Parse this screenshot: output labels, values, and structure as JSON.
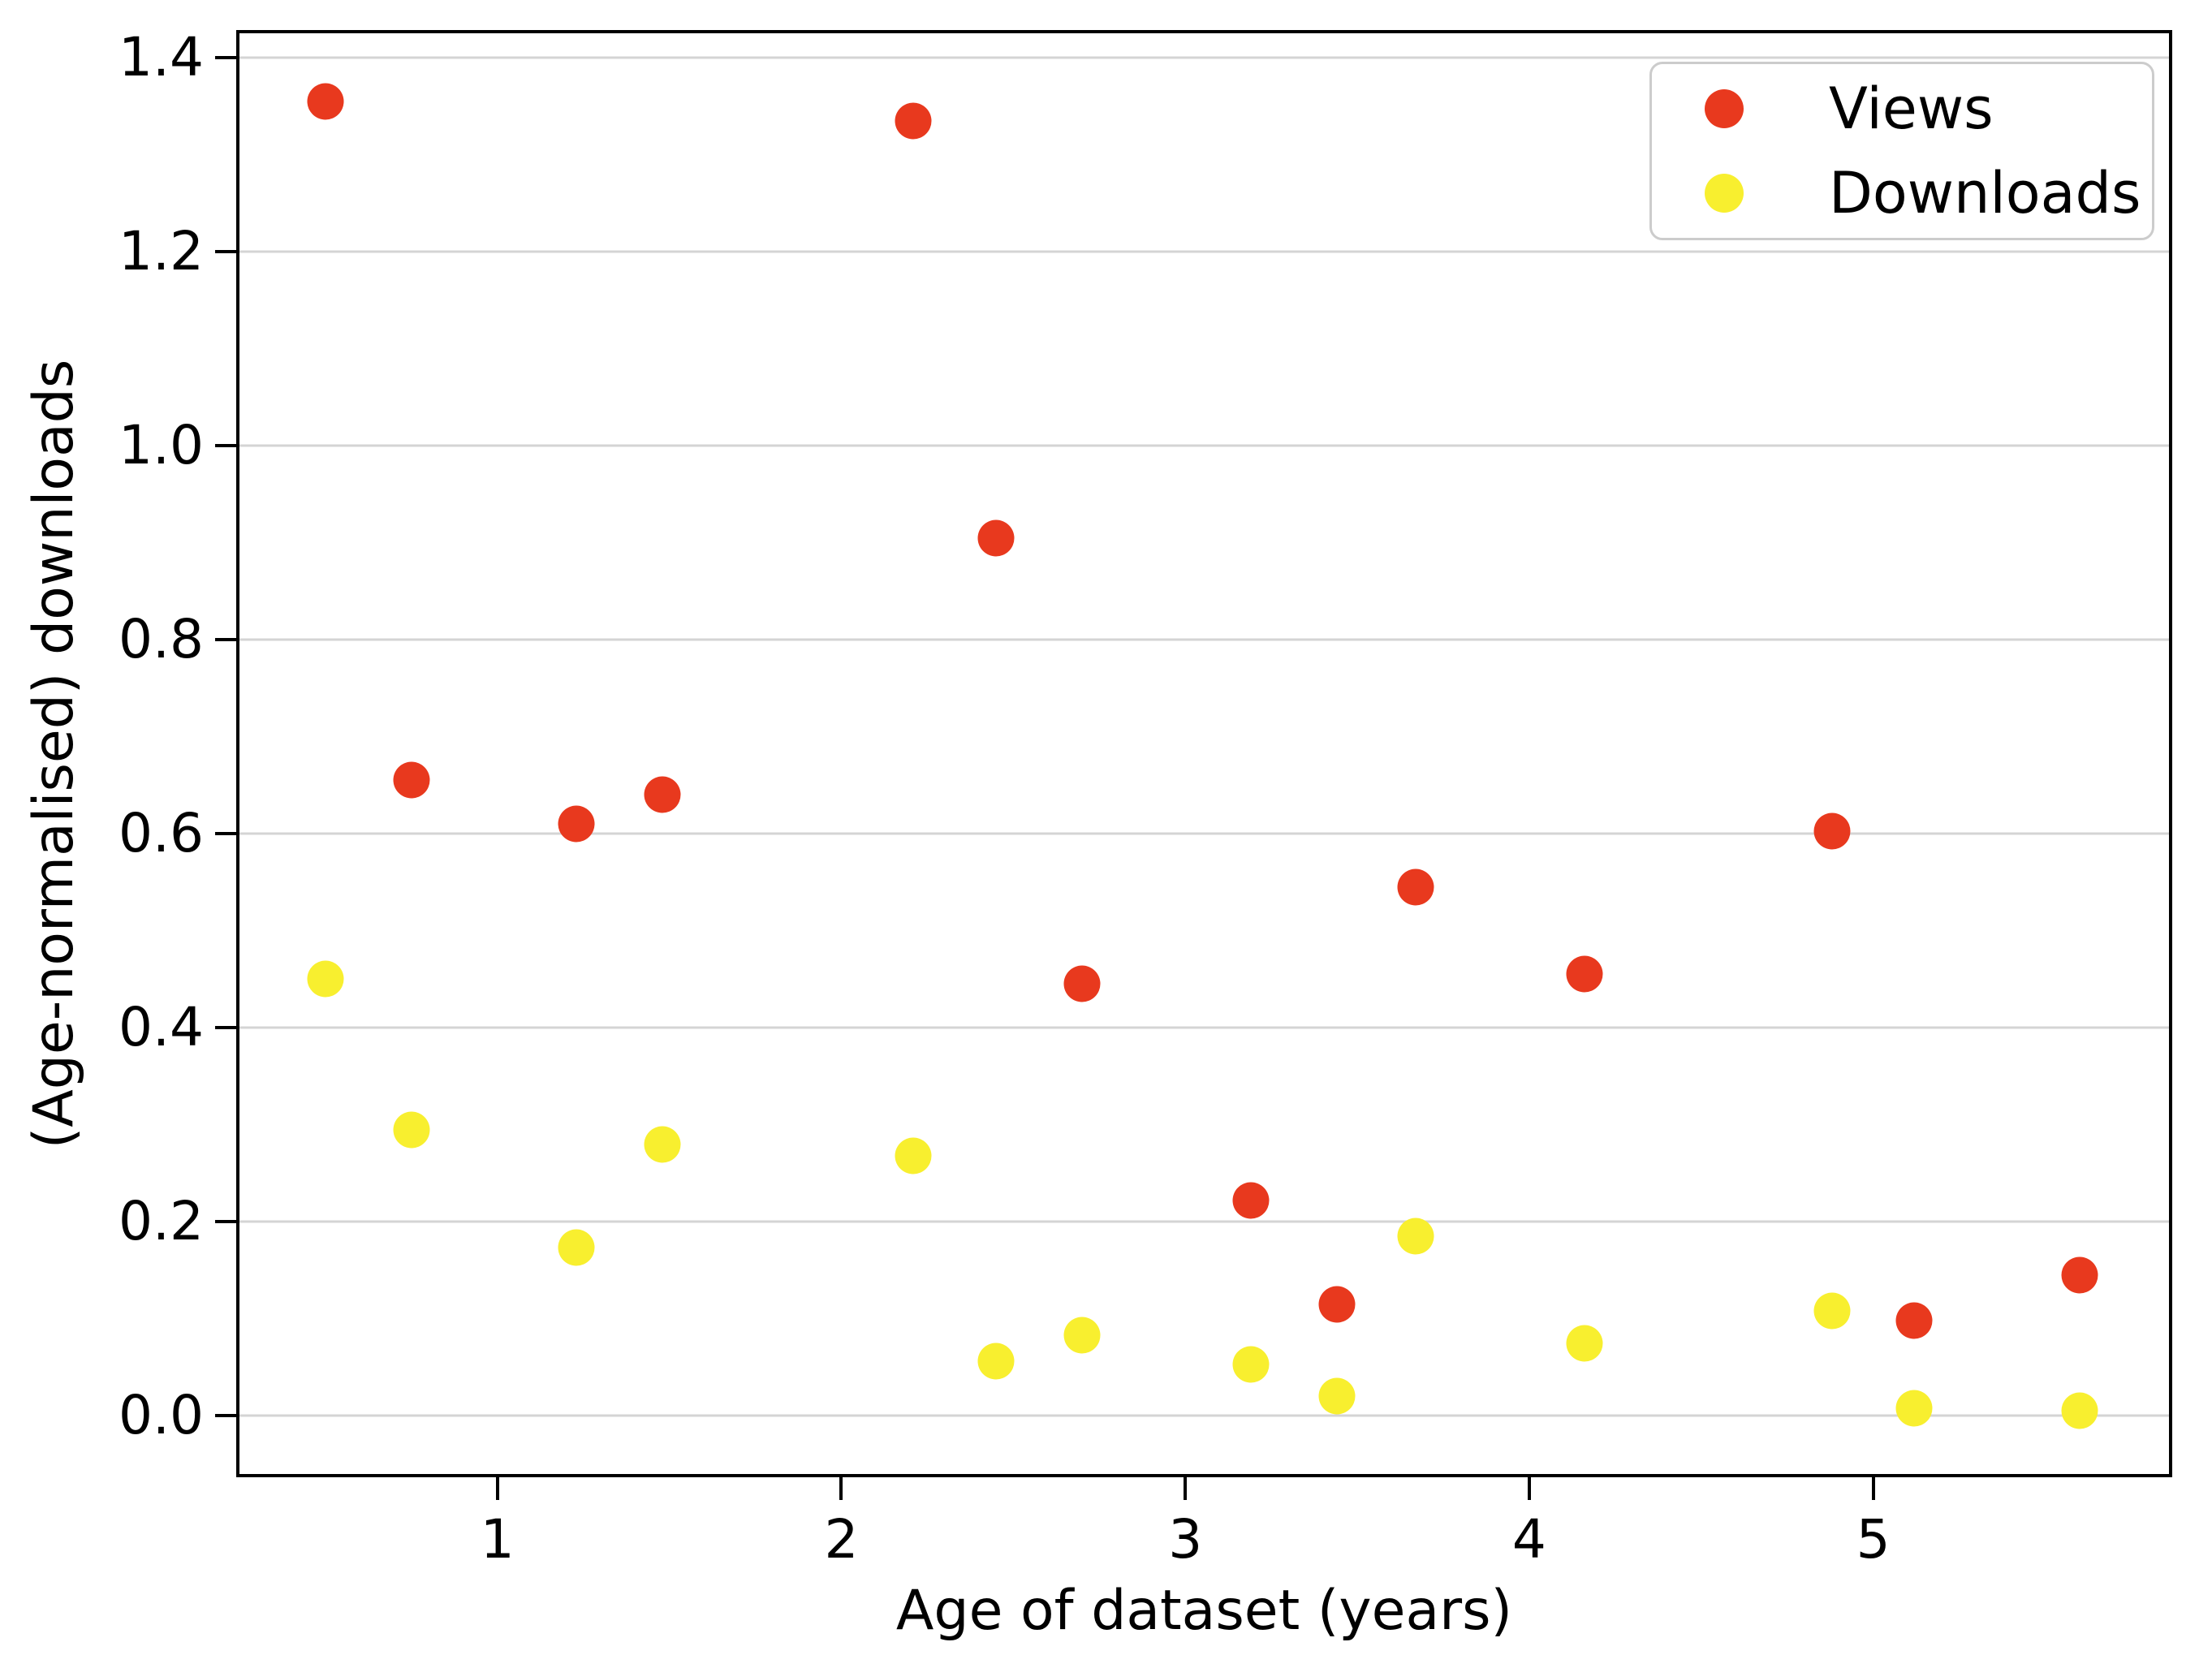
{
  "figure": {
    "background": "#ffffff"
  },
  "colors": {
    "views": "#e8391e",
    "downloads": "#f8ef2f",
    "grid": "#d4d4d4",
    "spine": "#000000",
    "text": "#000000",
    "legend_border": "#cccccc"
  },
  "chart_data": {
    "type": "scatter",
    "title": "",
    "xlabel": "Age of dataset (years)",
    "ylabel": "(Age-normalised) downloads",
    "xlim": [
      0.25,
      5.86
    ],
    "ylim": [
      -0.06,
      1.425
    ],
    "x_ticks": [
      1,
      2,
      3,
      4,
      5
    ],
    "y_ticks": [
      0.0,
      0.2,
      0.4,
      0.6,
      0.8,
      1.0,
      1.2,
      1.4
    ],
    "grid": "horizontal-only",
    "legend_position": "upper-right",
    "x": [
      0.5,
      0.75,
      1.23,
      1.48,
      2.21,
      2.45,
      2.7,
      3.19,
      3.44,
      3.67,
      4.16,
      4.88,
      5.12,
      5.6
    ],
    "series": [
      {
        "name": "Views",
        "color": "#e8391e",
        "values": [
          1.355,
          0.655,
          0.61,
          0.64,
          1.335,
          0.905,
          0.445,
          0.222,
          0.115,
          0.545,
          0.455,
          0.603,
          0.098,
          0.145
        ]
      },
      {
        "name": "Downloads",
        "color": "#f8ef2f",
        "values": [
          0.45,
          0.295,
          0.173,
          0.28,
          0.268,
          0.056,
          0.083,
          0.053,
          0.02,
          0.185,
          0.075,
          0.108,
          0.008,
          0.005
        ]
      }
    ]
  }
}
